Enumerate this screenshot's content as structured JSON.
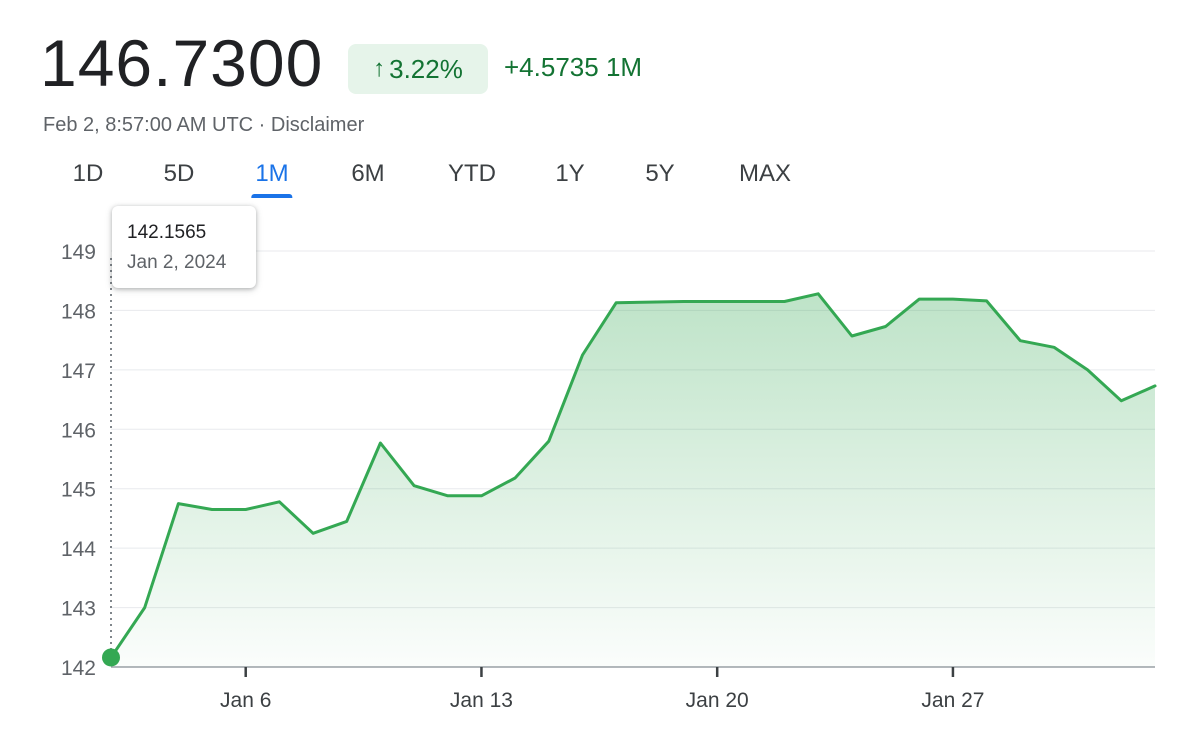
{
  "header": {
    "price": "146.7300",
    "change_percent": "3.22%",
    "change_absolute": "+4.5735",
    "change_period": "1M",
    "timestamp": "Feb 2, 8:57:00 AM UTC",
    "separator": "·",
    "disclaimer": "Disclaimer",
    "arrow_icon": "arrow-up-icon"
  },
  "tabs": [
    {
      "label": "1D",
      "active": false
    },
    {
      "label": "5D",
      "active": false
    },
    {
      "label": "1M",
      "active": true
    },
    {
      "label": "6M",
      "active": false
    },
    {
      "label": "YTD",
      "active": false
    },
    {
      "label": "1Y",
      "active": false
    },
    {
      "label": "5Y",
      "active": false
    },
    {
      "label": "MAX",
      "active": false
    }
  ],
  "tooltip": {
    "value": "142.1565",
    "date": "Jan 2, 2024"
  },
  "colors": {
    "positive": "#137333",
    "line": "#34a853",
    "accent": "#1a73e8"
  },
  "chart_data": {
    "type": "area",
    "title": "",
    "xlabel": "",
    "ylabel": "",
    "ylim": [
      142,
      149
    ],
    "xlim": [
      "2024-01-02",
      "2024-02-02"
    ],
    "yticks": [
      142,
      143,
      144,
      145,
      146,
      147,
      148,
      149
    ],
    "xticks": [
      {
        "date": "2024-01-06",
        "label": "Jan 6"
      },
      {
        "date": "2024-01-13",
        "label": "Jan 13"
      },
      {
        "date": "2024-01-20",
        "label": "Jan 20"
      },
      {
        "date": "2024-01-27",
        "label": "Jan 27"
      }
    ],
    "grid": true,
    "series": [
      {
        "points": [
          [
            "2024-01-02",
            142.16
          ],
          [
            "2024-01-03",
            143.0
          ],
          [
            "2024-01-04",
            144.75
          ],
          [
            "2024-01-05",
            144.65
          ],
          [
            "2024-01-06",
            144.65
          ],
          [
            "2024-01-07",
            144.78
          ],
          [
            "2024-01-08",
            144.25
          ],
          [
            "2024-01-09",
            144.45
          ],
          [
            "2024-01-10",
            145.77
          ],
          [
            "2024-01-11",
            145.05
          ],
          [
            "2024-01-12",
            144.88
          ],
          [
            "2024-01-13",
            144.88
          ],
          [
            "2024-01-14",
            145.18
          ],
          [
            "2024-01-15",
            145.8
          ],
          [
            "2024-01-16",
            147.25
          ],
          [
            "2024-01-17",
            148.13
          ],
          [
            "2024-01-18",
            148.14
          ],
          [
            "2024-01-19",
            148.15
          ],
          [
            "2024-01-20",
            148.15
          ],
          [
            "2024-01-21",
            148.15
          ],
          [
            "2024-01-22",
            148.15
          ],
          [
            "2024-01-23",
            148.28
          ],
          [
            "2024-01-24",
            147.57
          ],
          [
            "2024-01-25",
            147.73
          ],
          [
            "2024-01-26",
            148.19
          ],
          [
            "2024-01-27",
            148.19
          ],
          [
            "2024-01-28",
            148.16
          ],
          [
            "2024-01-29",
            147.49
          ],
          [
            "2024-01-30",
            147.38
          ],
          [
            "2024-01-31",
            147.0
          ],
          [
            "2024-02-01",
            146.48
          ],
          [
            "2024-02-02",
            146.73
          ]
        ]
      }
    ]
  }
}
